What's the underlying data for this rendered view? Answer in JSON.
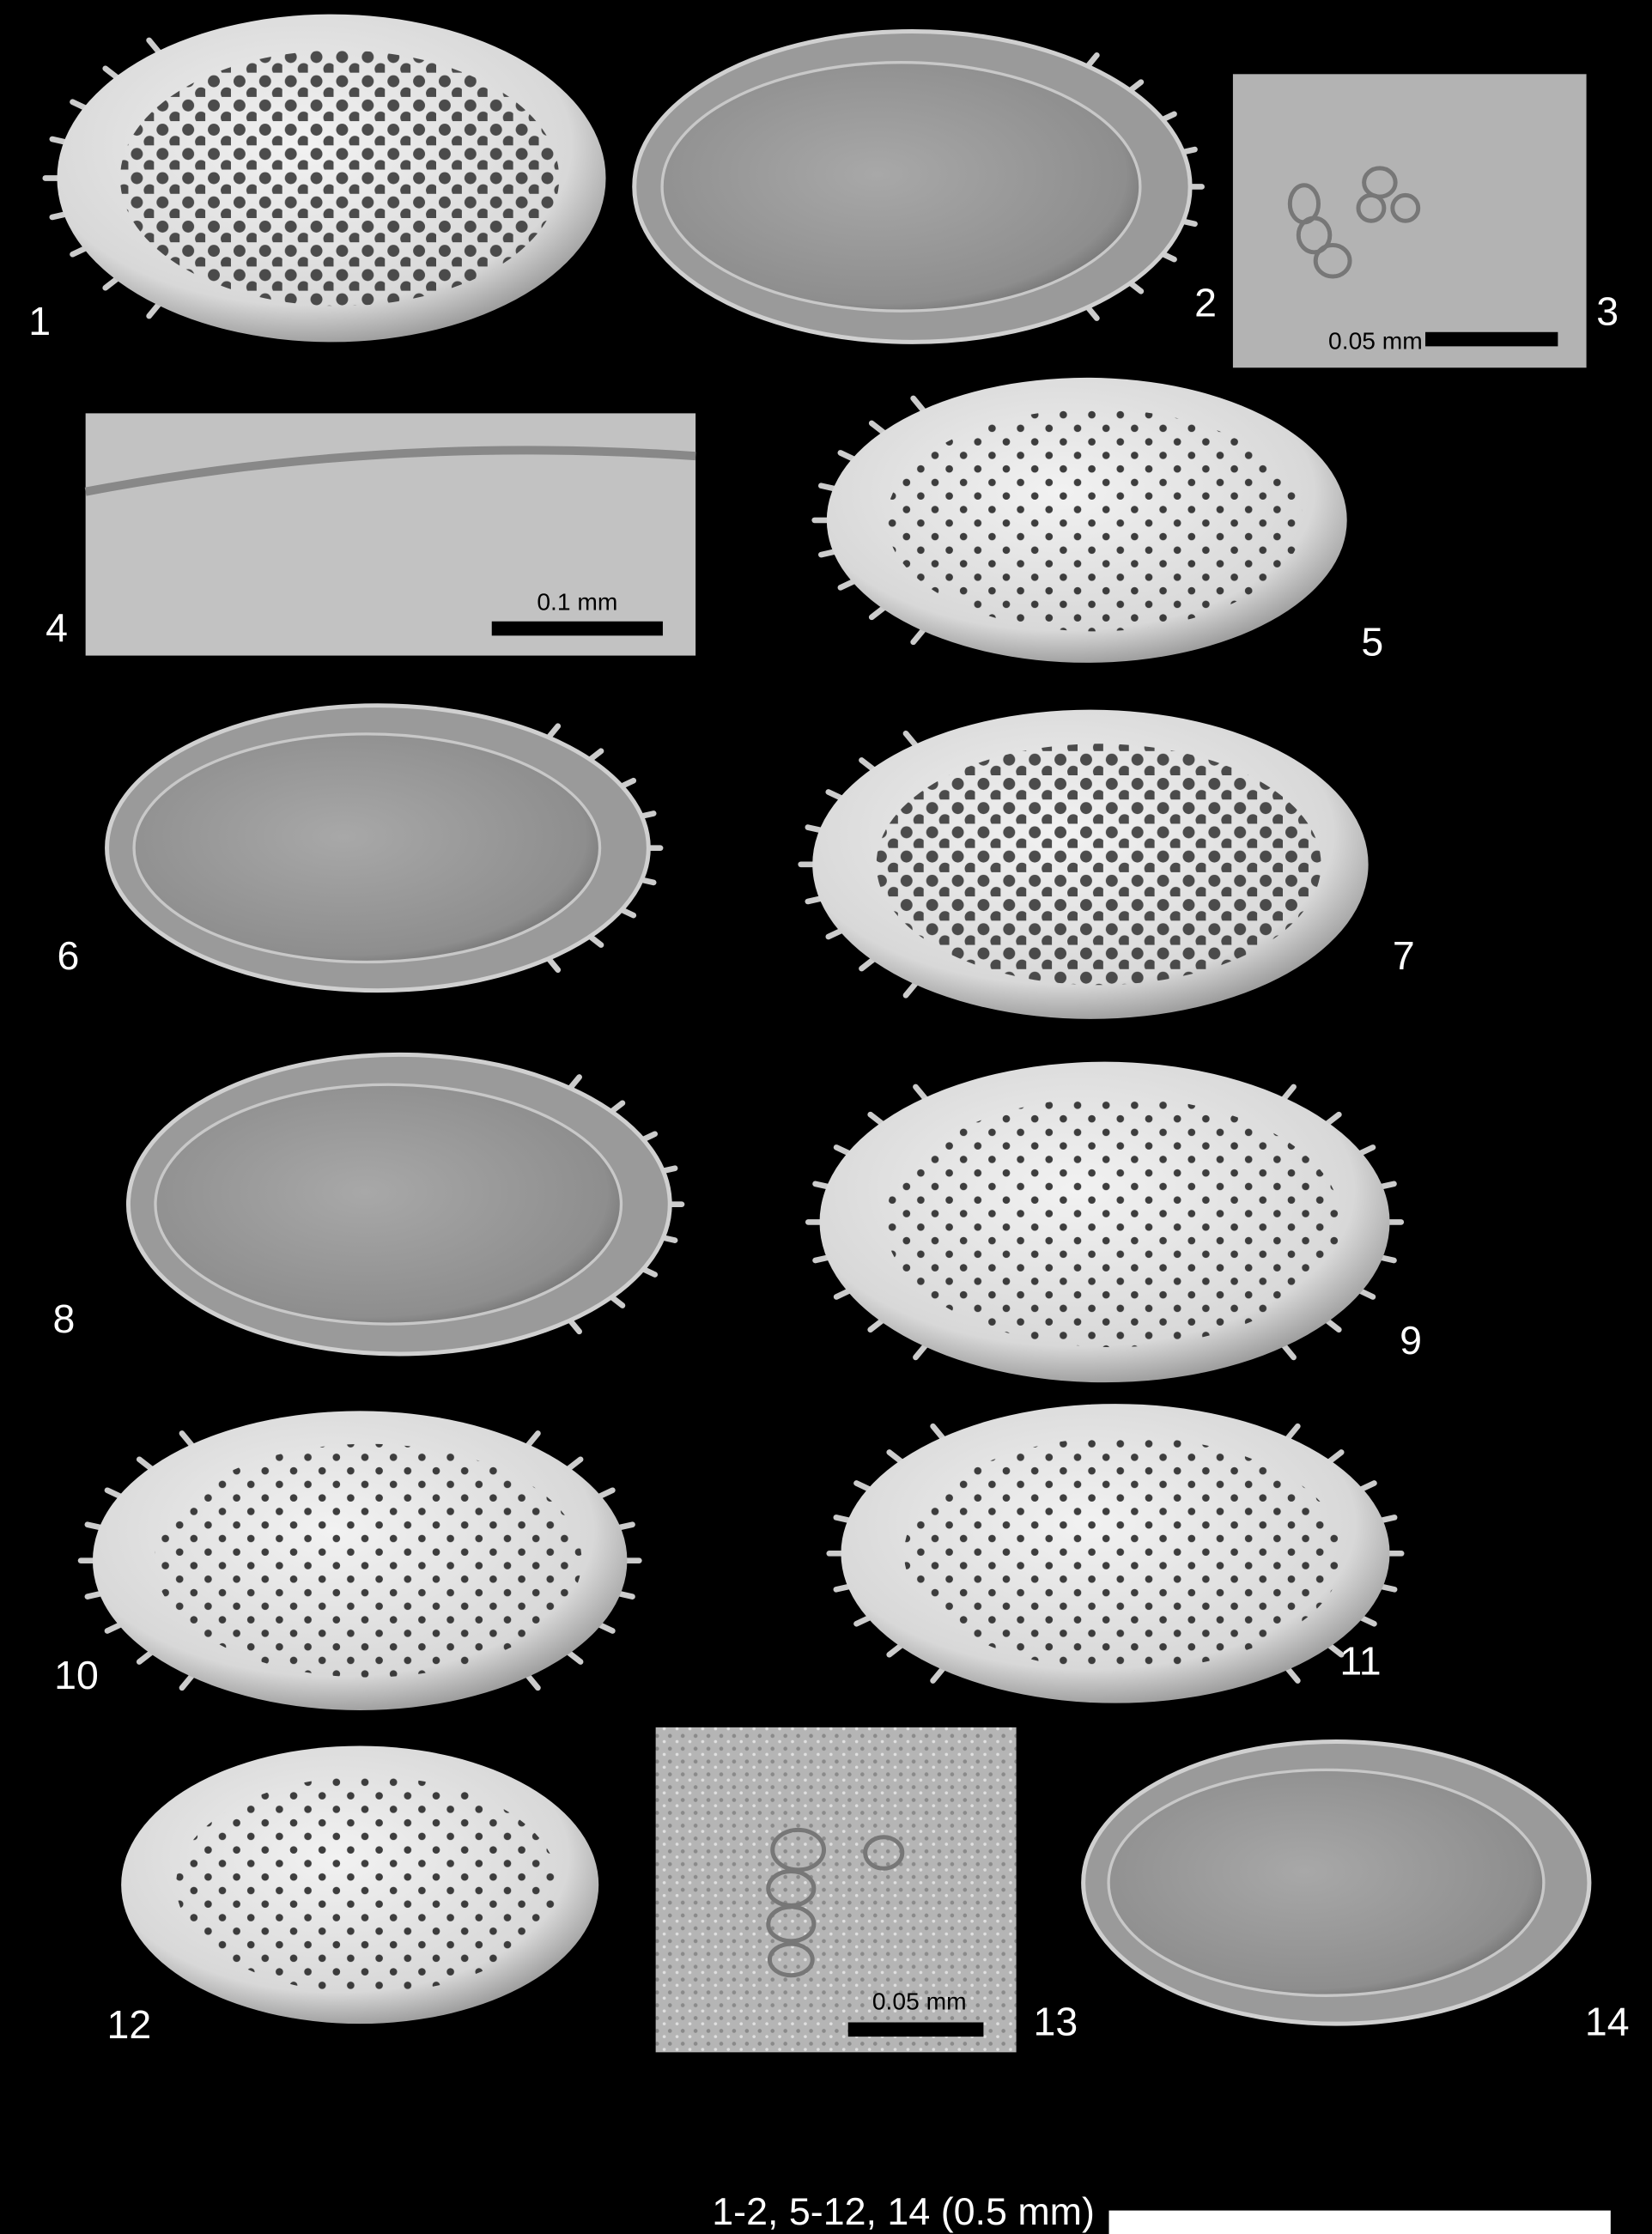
{
  "panel_labels": [
    "1",
    "2",
    "3",
    "4",
    "5",
    "6",
    "7",
    "8",
    "9",
    "10",
    "11",
    "12",
    "13",
    "14"
  ],
  "scale_bar_labels": [
    "0.05 mm",
    "0.1 mm",
    "0.05 mm"
  ],
  "caption": "1-2, 5-12, 14 (0.5 mm)"
}
